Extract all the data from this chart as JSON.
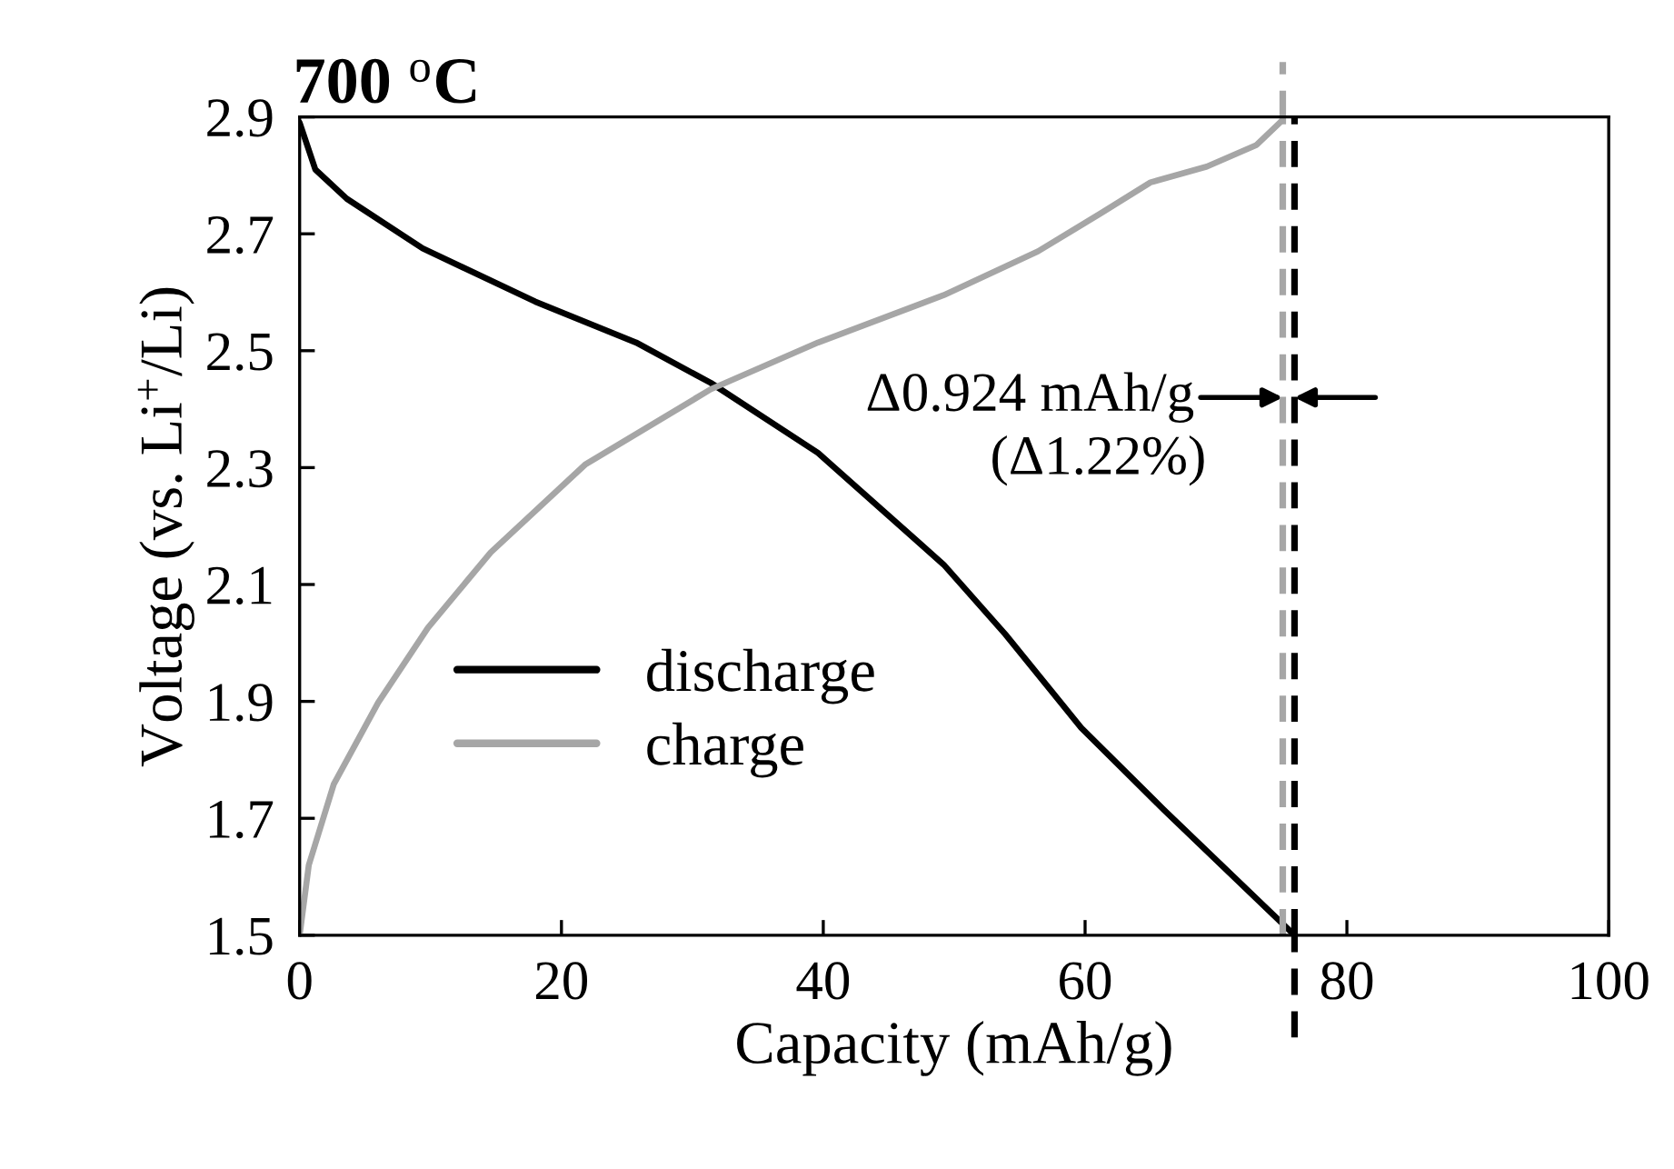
{
  "chart_data": {
    "type": "line",
    "title": "700 $^{o}$C",
    "xlabel": "Capacity (mAh/g)",
    "ylabel": "Voltage (vs. Li$^{+}$/Li)",
    "series": [
      {
        "name": "discharge",
        "color": "#000000",
        "x": [
          0,
          1.2,
          3.6,
          9.4,
          18.0,
          25.7,
          31.4,
          39.6,
          49.2,
          53.9,
          59.7,
          66.0,
          76.0
        ],
        "values": [
          2.89,
          2.81,
          2.76,
          2.675,
          2.584,
          2.514,
          2.445,
          2.325,
          2.134,
          2.015,
          1.855,
          1.715,
          1.5
        ]
      },
      {
        "name": "charge",
        "color": "#a6a6a6",
        "x": [
          0,
          0.7,
          2.6,
          6.0,
          9.8,
          14.6,
          21.8,
          31.4,
          39.6,
          49.2,
          56.4,
          61.2,
          65.0,
          69.3,
          73.1,
          75.1
        ],
        "values": [
          1.5,
          1.62,
          1.758,
          1.898,
          2.026,
          2.155,
          2.305,
          2.434,
          2.514,
          2.595,
          2.67,
          2.735,
          2.788,
          2.815,
          2.852,
          2.895
        ]
      }
    ],
    "ref_lines": [
      {
        "axis": "x",
        "value": 75.1,
        "color": "#a6a6a6",
        "line_style": "dashed"
      },
      {
        "axis": "x",
        "value": 76.0,
        "color": "#000000",
        "line_style": "dashed"
      }
    ],
    "annotations": [
      {
        "text": "Δ0.924 mAh/g",
        "x": 75.1,
        "y": 2.42
      },
      "(Δ1.22%)"
    ],
    "xlim": [
      0,
      100
    ],
    "xticks": [
      0,
      20,
      40,
      60,
      80,
      100
    ],
    "ylim": [
      1.5,
      2.9
    ],
    "yticks": [
      1.5,
      1.7,
      1.9,
      2.1,
      2.3,
      2.5,
      2.7,
      2.9
    ],
    "grid": false,
    "legend": "lower left",
    "line_style": "solid",
    "marker": "none"
  }
}
